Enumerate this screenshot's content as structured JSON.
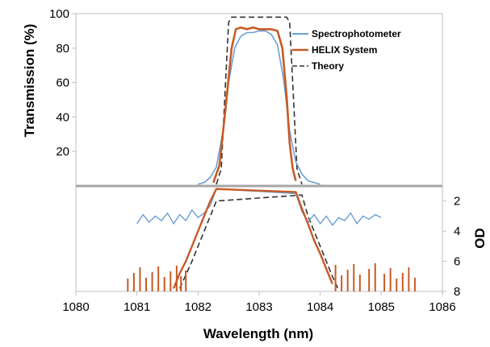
{
  "chart_data": {
    "type": "line",
    "xlabel": "Wavelength (nm)",
    "ylabel": "Transmission (%)",
    "y2label": "OD",
    "xlim": [
      1080,
      1086
    ],
    "x_ticks": [
      "1080",
      "1081",
      "1082",
      "1083",
      "1084",
      "1085",
      "1086"
    ],
    "ylim_transmission": [
      0,
      100
    ],
    "y_ticks": [
      "20",
      "40",
      "60",
      "80",
      "100"
    ],
    "ylim_od": [
      1,
      8
    ],
    "y2_ticks": [
      "2",
      "4",
      "6",
      "8"
    ],
    "od_divider_transmission": 0,
    "legend_position": "top-right",
    "colors": {
      "spectrophotometer": "#6a9fd4",
      "helix": "#c85a25",
      "theory": "#333333",
      "divider": "#a6a6a6",
      "frame": "#bfbfbf"
    },
    "series": [
      {
        "name": "Spectrophotometer",
        "transmission": {
          "x": [
            1082.0,
            1082.1,
            1082.2,
            1082.3,
            1082.4,
            1082.5,
            1082.6,
            1082.7,
            1082.8,
            1082.9,
            1083.0,
            1083.1,
            1083.2,
            1083.3,
            1083.4,
            1083.5,
            1083.6,
            1083.7,
            1083.8,
            1083.9,
            1084.0
          ],
          "y": [
            1,
            2,
            5,
            11,
            30,
            60,
            80,
            87,
            89,
            89,
            90,
            90,
            88,
            82,
            62,
            32,
            14,
            7,
            3,
            2,
            1
          ]
        },
        "od": {
          "x": [
            1081.0,
            1081.1,
            1081.2,
            1081.3,
            1081.4,
            1081.5,
            1081.6,
            1081.7,
            1081.8,
            1081.9,
            1082.0,
            1082.1,
            1082.2,
            1082.3,
            1083.6,
            1083.7,
            1083.8,
            1083.9,
            1084.0,
            1084.1,
            1084.2,
            1084.3,
            1084.4,
            1084.5,
            1084.6,
            1084.7,
            1084.8,
            1084.9,
            1085.0
          ],
          "y": [
            3.5,
            2.9,
            3.4,
            3.0,
            3.3,
            2.8,
            3.5,
            2.9,
            3.3,
            2.6,
            3.1,
            2.8,
            2.3,
            1.2,
            1.5,
            2.7,
            3.4,
            2.9,
            3.5,
            3.0,
            3.6,
            3.1,
            3.3,
            2.8,
            3.5,
            3.0,
            3.2,
            2.9,
            3.1
          ]
        }
      },
      {
        "name": "HELIX System",
        "transmission": {
          "x": [
            1082.25,
            1082.35,
            1082.45,
            1082.55,
            1082.62,
            1082.7,
            1082.8,
            1082.9,
            1083.0,
            1083.1,
            1083.2,
            1083.3,
            1083.38,
            1083.45,
            1083.5,
            1083.55,
            1083.6
          ],
          "y": [
            2,
            12,
            45,
            80,
            91,
            92,
            91,
            92,
            91,
            91,
            91,
            90,
            80,
            52,
            25,
            10,
            3
          ]
        },
        "od": {
          "x": [
            1081.6,
            1081.7,
            1081.8,
            1081.9,
            1082.0,
            1082.1,
            1082.2,
            1082.3,
            1083.6,
            1083.7,
            1083.8,
            1083.9,
            1084.0,
            1084.1,
            1084.2
          ],
          "y": [
            7.8,
            6.8,
            6.0,
            5.0,
            4.0,
            3.0,
            2.0,
            1.2,
            1.4,
            2.5,
            3.5,
            4.6,
            5.5,
            6.5,
            7.5
          ]
        },
        "noise_floor_bursts_x": [
          1080.85,
          1080.95,
          1081.05,
          1081.15,
          1081.25,
          1081.35,
          1081.45,
          1081.55,
          1081.65,
          1081.72,
          1081.8,
          1084.25,
          1084.35,
          1084.45,
          1084.55,
          1084.65,
          1084.8,
          1084.9,
          1085.05,
          1085.15,
          1085.25,
          1085.35,
          1085.45,
          1085.55
        ]
      },
      {
        "name": "Theory",
        "transmission": {
          "x": [
            1082.3,
            1082.38,
            1082.45,
            1082.5,
            1082.55,
            1083.45,
            1083.5,
            1083.55,
            1083.62,
            1083.7
          ],
          "y": [
            1,
            10,
            60,
            95,
            98,
            98,
            95,
            60,
            10,
            1
          ]
        },
        "od": {
          "x": [
            1081.7,
            1081.8,
            1081.9,
            1082.0,
            1082.1,
            1082.2,
            1082.3,
            1083.7,
            1083.8,
            1083.9,
            1084.0,
            1084.1,
            1084.2,
            1084.3
          ],
          "y": [
            7.8,
            6.9,
            6.0,
            5.0,
            4.0,
            3.0,
            2.0,
            1.6,
            3.0,
            4.0,
            5.0,
            6.0,
            7.0,
            7.9
          ]
        }
      }
    ]
  }
}
